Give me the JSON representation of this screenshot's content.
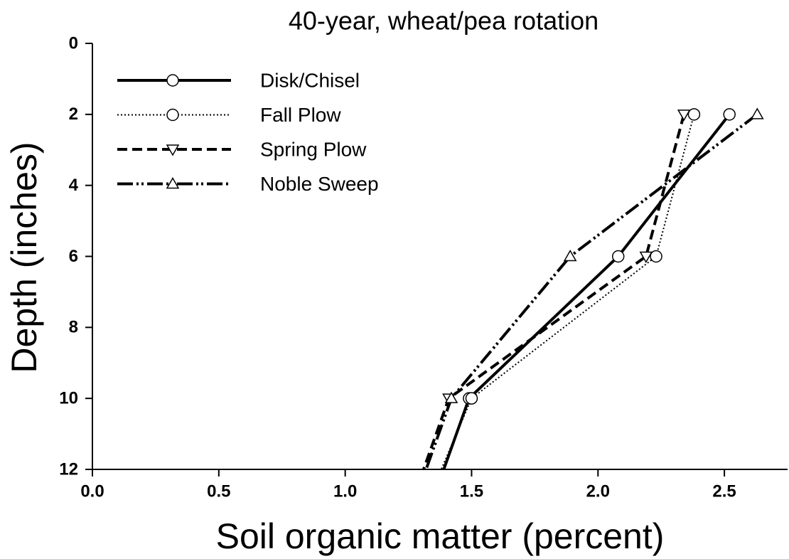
{
  "chart_data": {
    "type": "line",
    "title": "40-year, wheat/pea rotation",
    "x_label": "Soil organic matter (percent)",
    "y_label": "Depth (inches)",
    "y": [
      2,
      6,
      10,
      12
    ],
    "series": [
      {
        "name": "Disk/Chisel",
        "color": "#000000",
        "dash": "solid",
        "marker": "circle",
        "values": [
          2.52,
          2.08,
          1.49,
          1.39
        ]
      },
      {
        "name": "Fall Plow",
        "color": "#000000",
        "dash": "dotted",
        "marker": "circle",
        "values": [
          2.38,
          2.23,
          1.5,
          1.38
        ]
      },
      {
        "name": "Spring Plow",
        "color": "#000000",
        "dash": "dashed",
        "marker": "triangle-down",
        "values": [
          2.34,
          2.19,
          1.41,
          1.31
        ]
      },
      {
        "name": "Noble Sweep",
        "color": "#000000",
        "dash": "dashdot",
        "marker": "triangle-up",
        "values": [
          2.63,
          1.89,
          1.42,
          1.32
        ]
      }
    ],
    "xlim": [
      0,
      2.75
    ],
    "xticks": [
      {
        "value": 0,
        "label": "0.0"
      },
      0.5,
      {
        "value": 1,
        "label": "1.0"
      },
      1.5,
      {
        "value": 2,
        "label": "2.0"
      },
      2.5
    ],
    "ylim": [
      0,
      12
    ],
    "y_inverted": true,
    "yticks": [
      0,
      2,
      4,
      6,
      8,
      10,
      12
    ],
    "legend": "upper-left",
    "grid": false
  }
}
